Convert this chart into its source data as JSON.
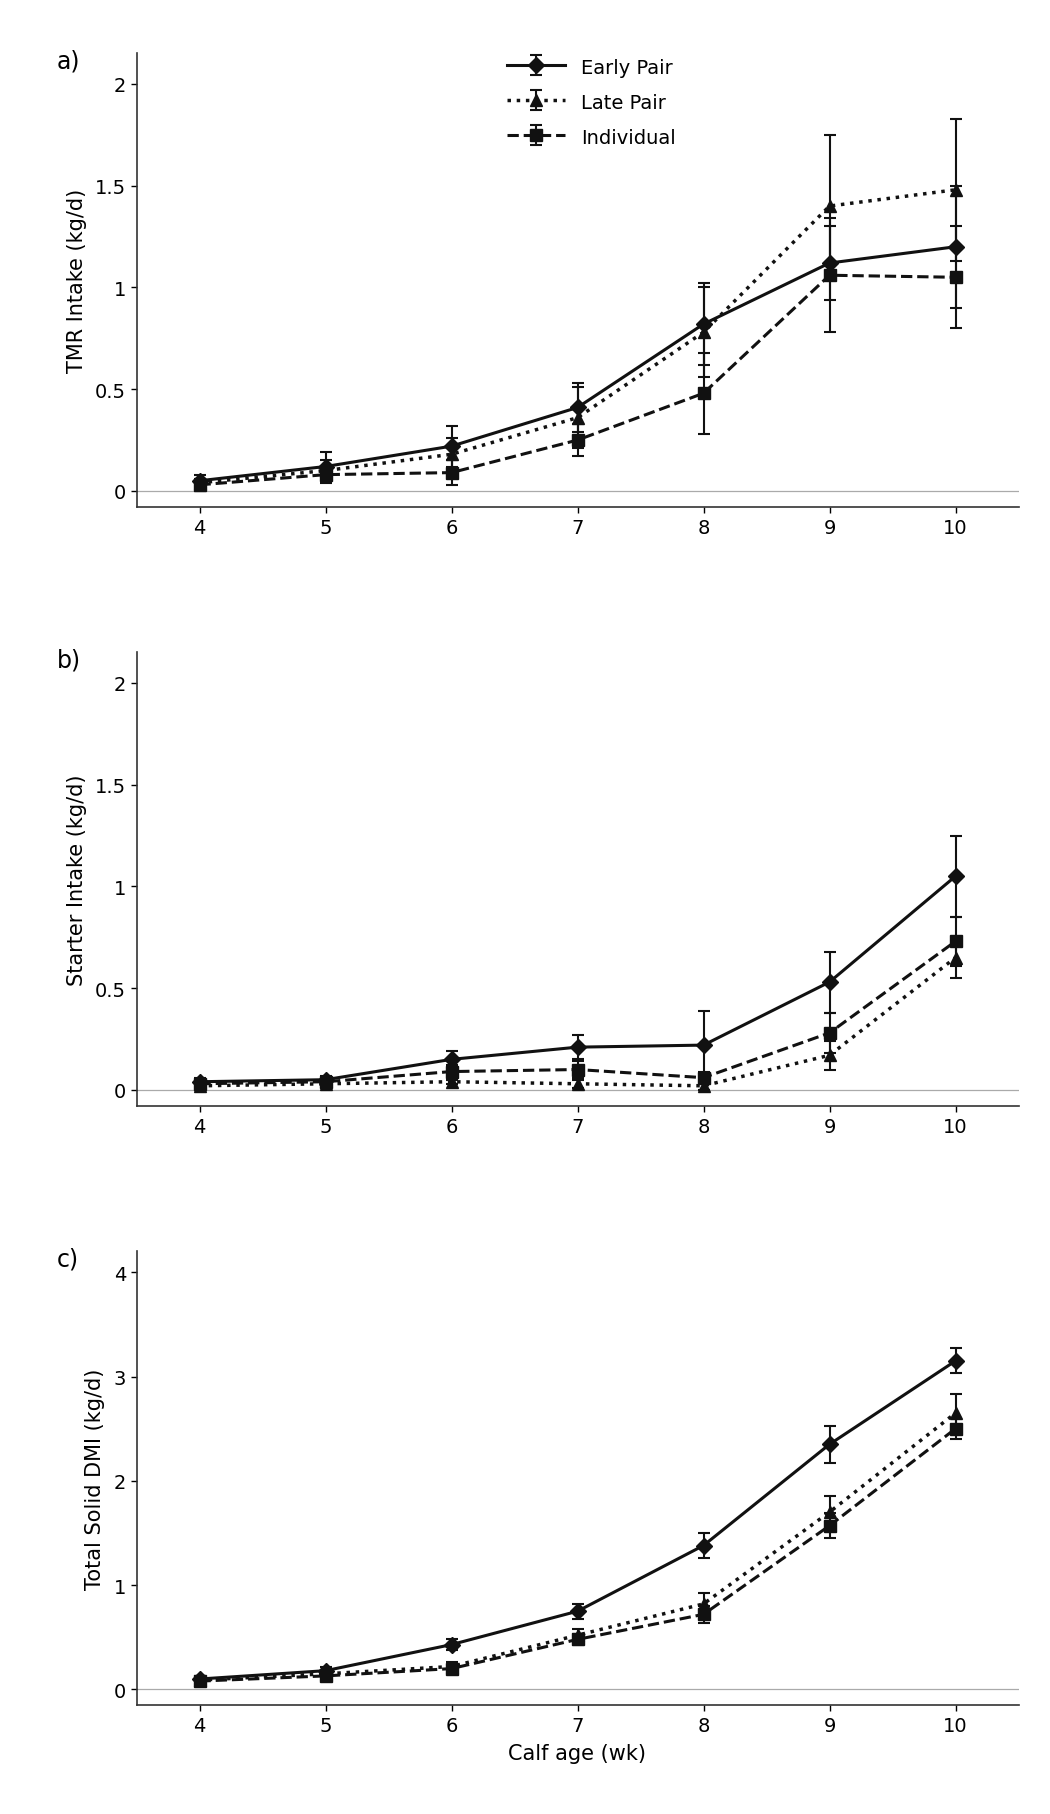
{
  "x": [
    4,
    5,
    6,
    7,
    8,
    9,
    10
  ],
  "panel_a": {
    "ylabel": "TMR Intake (kg/d)",
    "ylim": [
      -0.08,
      2.15
    ],
    "yticks": [
      0,
      0.5,
      1.0,
      1.5,
      2.0
    ],
    "yticklabels": [
      "0",
      "0.5",
      "1",
      "1.5",
      "2"
    ],
    "early_pair": [
      0.05,
      0.12,
      0.22,
      0.41,
      0.82,
      1.12,
      1.2
    ],
    "early_pair_se": [
      0.03,
      0.07,
      0.1,
      0.12,
      0.2,
      0.18,
      0.3
    ],
    "late_pair": [
      0.04,
      0.1,
      0.18,
      0.36,
      0.78,
      1.4,
      1.48
    ],
    "late_pair_se": [
      0.02,
      0.05,
      0.08,
      0.15,
      0.22,
      0.35,
      0.35
    ],
    "individual": [
      0.03,
      0.08,
      0.09,
      0.25,
      0.48,
      1.06,
      1.05
    ],
    "individual_se": [
      0.03,
      0.04,
      0.06,
      0.08,
      0.2,
      0.28,
      0.25
    ]
  },
  "panel_b": {
    "ylabel": "Starter Intake (kg/d)",
    "ylim": [
      -0.08,
      2.15
    ],
    "yticks": [
      0,
      0.5,
      1.0,
      1.5,
      2.0
    ],
    "yticklabels": [
      "0",
      "0.5",
      "1",
      "1.5",
      "2"
    ],
    "early_pair": [
      0.04,
      0.05,
      0.15,
      0.21,
      0.22,
      0.53,
      1.05
    ],
    "early_pair_se": [
      0.02,
      0.02,
      0.04,
      0.06,
      0.17,
      0.15,
      0.2
    ],
    "late_pair": [
      0.02,
      0.03,
      0.04,
      0.03,
      0.02,
      0.17,
      0.65
    ],
    "late_pair_se": [
      0.01,
      0.01,
      0.01,
      0.02,
      0.02,
      0.07,
      0.1
    ],
    "individual": [
      0.03,
      0.04,
      0.09,
      0.1,
      0.06,
      0.28,
      0.73
    ],
    "individual_se": [
      0.01,
      0.02,
      0.03,
      0.04,
      0.03,
      0.1,
      0.12
    ]
  },
  "panel_c": {
    "ylabel": "Total Solid DMI (kg/d)",
    "xlabel": "Calf age (wk)",
    "ylim": [
      -0.15,
      4.2
    ],
    "yticks": [
      0,
      1.0,
      2.0,
      3.0,
      4.0
    ],
    "yticklabels": [
      "0",
      "1",
      "2",
      "3",
      "4"
    ],
    "early_pair": [
      0.1,
      0.18,
      0.43,
      0.75,
      1.38,
      2.35,
      3.15
    ],
    "early_pair_se": [
      0.03,
      0.04,
      0.05,
      0.07,
      0.12,
      0.18,
      0.12
    ],
    "late_pair": [
      0.09,
      0.15,
      0.22,
      0.52,
      0.82,
      1.7,
      2.65
    ],
    "late_pair_se": [
      0.02,
      0.03,
      0.04,
      0.06,
      0.1,
      0.15,
      0.18
    ],
    "individual": [
      0.08,
      0.13,
      0.2,
      0.48,
      0.72,
      1.57,
      2.5
    ],
    "individual_se": [
      0.02,
      0.03,
      0.03,
      0.05,
      0.08,
      0.12,
      0.1
    ]
  },
  "legend": {
    "early_pair_label": "Early Pair",
    "late_pair_label": "Late Pair",
    "individual_label": "Individual"
  },
  "panel_labels": [
    "a)",
    "b)",
    "c)"
  ],
  "line_color": "#111111",
  "background_color": "#ffffff"
}
